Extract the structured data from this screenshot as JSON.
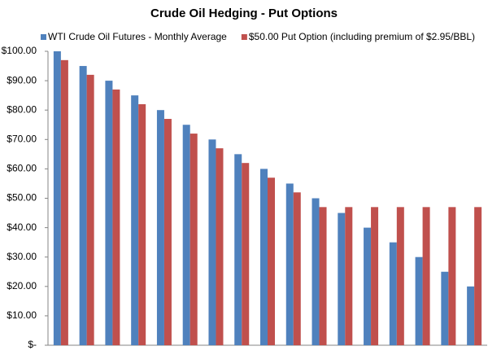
{
  "chart_data": {
    "type": "bar",
    "title": "Crude Oil Hedging - Put Options",
    "categories": [
      null,
      null,
      null,
      null,
      null,
      null,
      null,
      null,
      null,
      null,
      null,
      null,
      null,
      null,
      null,
      null,
      null
    ],
    "series": [
      {
        "name": "WTI Crude Oil Futures - Monthly Average",
        "color": "#4f81bd",
        "values": [
          100,
          95,
          90,
          85,
          80,
          75,
          70,
          65,
          60,
          55,
          50,
          45,
          40,
          35,
          30,
          25,
          20
        ]
      },
      {
        "name": "$50.00 Put Option (including premium of $2.95/BBL)",
        "color": "#c0504d",
        "values": [
          97,
          92,
          87,
          82,
          77,
          72,
          67,
          62,
          57,
          52,
          47,
          47,
          47,
          47,
          47,
          47,
          47
        ]
      }
    ],
    "ylim": [
      0,
      100
    ],
    "yticks": [
      {
        "value": 0,
        "label": "$-"
      },
      {
        "value": 10,
        "label": "$10.00"
      },
      {
        "value": 20,
        "label": "$20.00"
      },
      {
        "value": 30,
        "label": "$30.00"
      },
      {
        "value": 40,
        "label": "$40.00"
      },
      {
        "value": 50,
        "label": "$50.00"
      },
      {
        "value": 60,
        "label": "$60.00"
      },
      {
        "value": 70,
        "label": "$70.00"
      },
      {
        "value": 80,
        "label": "$80.00"
      },
      {
        "value": 90,
        "label": "$90.00"
      },
      {
        "value": 100,
        "label": "$100.00"
      }
    ],
    "grid": false,
    "legend": "top"
  }
}
